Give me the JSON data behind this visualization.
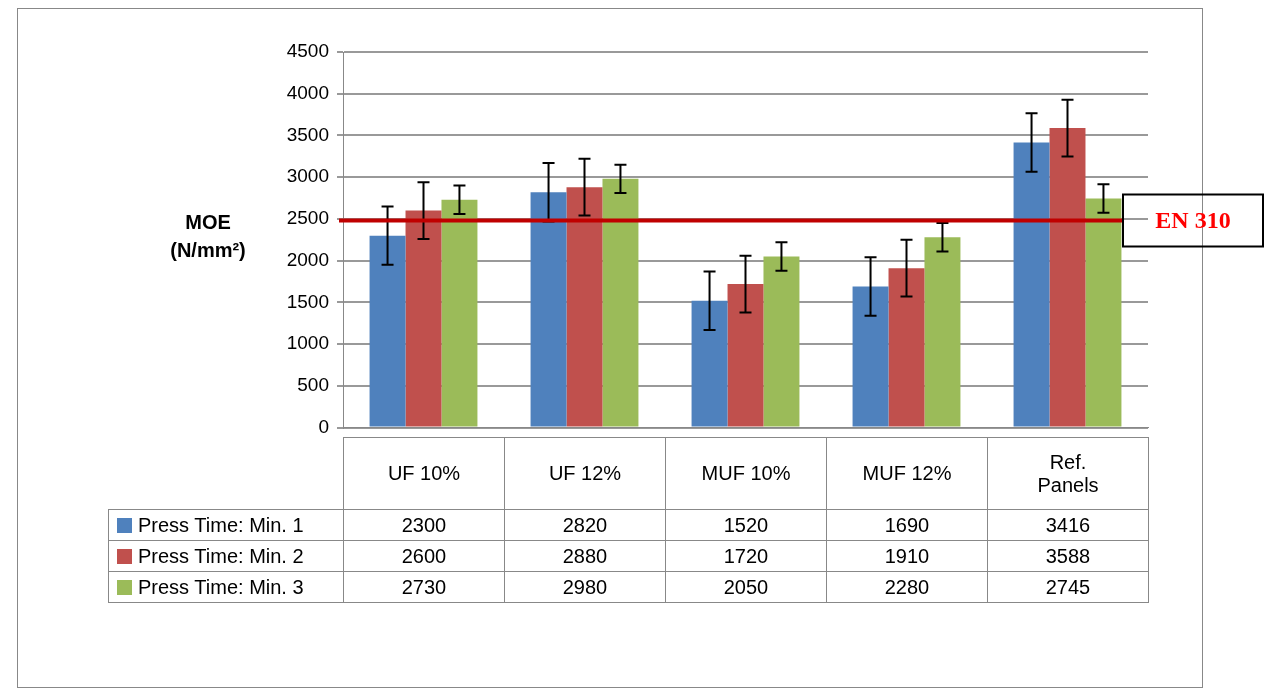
{
  "chart_data": {
    "type": "bar",
    "ylabel": "MOE (N/mm²)",
    "categories": [
      "UF 10%",
      "UF 12%",
      "MUF 10%",
      "MUF 12%",
      "Ref. Panels"
    ],
    "series": [
      {
        "name": "Press Time: Min. 1",
        "color": "#4f81bd",
        "values": [
          2300,
          2820,
          1520,
          1690,
          3416
        ],
        "errors": [
          350,
          350,
          350,
          350,
          350
        ]
      },
      {
        "name": "Press Time: Min. 2",
        "color": "#c0504d",
        "values": [
          2600,
          2880,
          1720,
          1910,
          3588
        ],
        "errors": [
          340,
          340,
          340,
          340,
          340
        ]
      },
      {
        "name": "Press Time: Min. 3",
        "color": "#9bbb59",
        "values": [
          2730,
          2980,
          2050,
          2280,
          2745
        ],
        "errors": [
          170,
          170,
          170,
          170,
          170
        ]
      }
    ],
    "ylim": [
      0,
      4500
    ],
    "yticks": [
      0,
      500,
      1000,
      1500,
      2000,
      2500,
      3000,
      3500,
      4000,
      4500
    ],
    "grid": "y",
    "data_labels": true,
    "legend": "bottom left",
    "ref_lines": [
      {
        "axis": "y",
        "value": 2480,
        "label": "EN 310",
        "color": "#c00000"
      }
    ]
  }
}
